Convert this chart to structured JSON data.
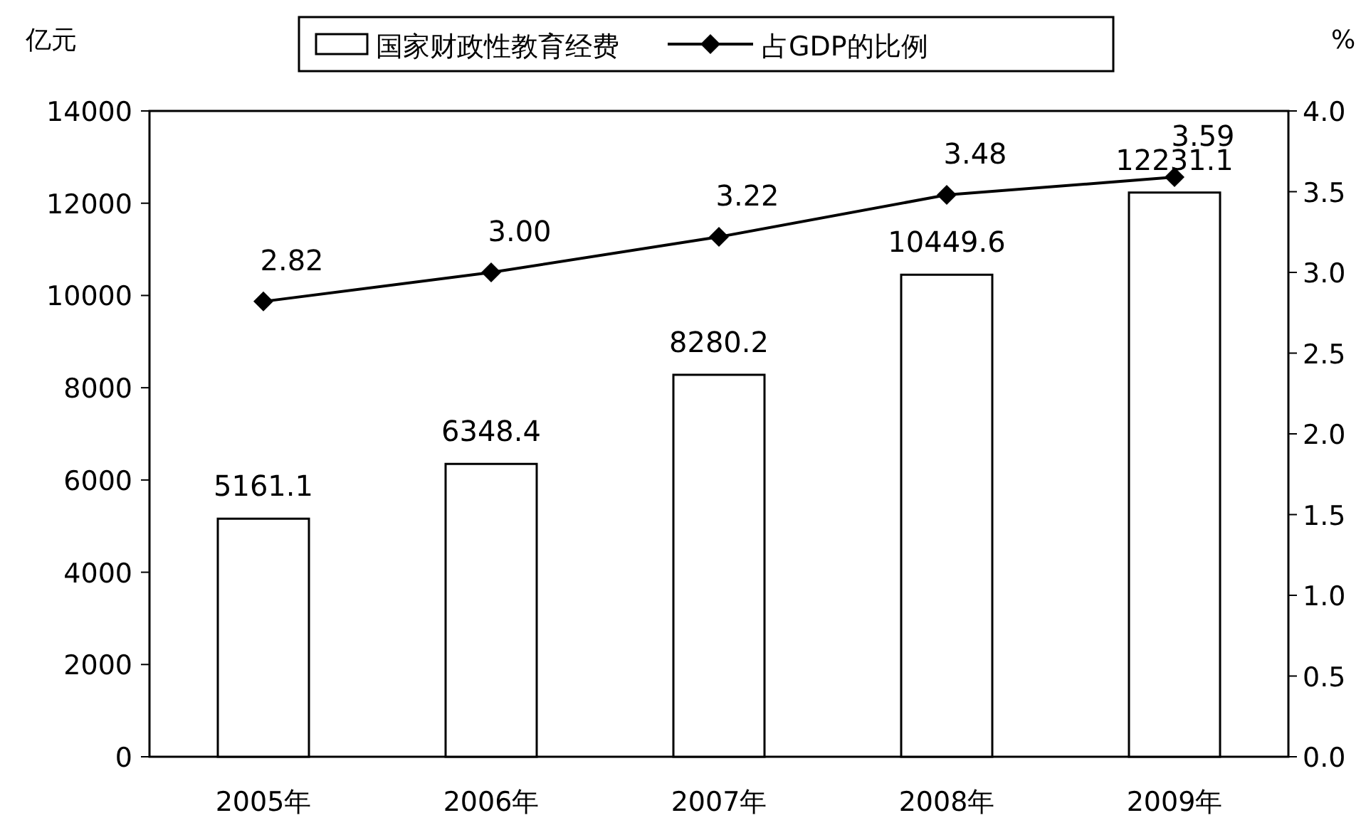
{
  "chart_data": {
    "type": "bar",
    "categories": [
      "2005年",
      "2006年",
      "2007年",
      "2008年",
      "2009年"
    ],
    "ylabel": "亿元",
    "y2label": "%",
    "ylim": [
      0,
      14000
    ],
    "yticks": [
      0,
      2000,
      4000,
      6000,
      8000,
      10000,
      12000,
      14000
    ],
    "y2lim": [
      0,
      4
    ],
    "y2ticks": [
      {
        "value": 0,
        "label": "0.0"
      },
      {
        "value": 0.5,
        "label": "0.5"
      },
      {
        "value": 1,
        "label": "1.0"
      },
      {
        "value": 1.5,
        "label": "1.5"
      },
      {
        "value": 2,
        "label": "2.0"
      },
      {
        "value": 2.5,
        "label": "2.5"
      },
      {
        "value": 3,
        "label": "3.0"
      },
      {
        "value": 3.5,
        "label": "3.5"
      },
      {
        "value": 4,
        "label": "4.0"
      }
    ],
    "legend": "top",
    "marker": "diamond",
    "grid": false,
    "series": [
      {
        "name": "国家财政性教育经费",
        "color": "#ffffff",
        "values": [
          5161.1,
          6348.4,
          8280.2,
          10449.6,
          12231.1
        ],
        "value_labels": [
          "5161.1",
          "6348.4",
          "8280.2",
          "10449.6",
          "12231.1"
        ]
      },
      {
        "name": "占GDP的比例",
        "type": "line",
        "axis": "y2",
        "color": "#000000",
        "values": [
          2.82,
          3.0,
          3.22,
          3.48,
          3.59
        ],
        "value_labels": [
          "2.82",
          "3.00",
          "3.22",
          "3.48",
          "3.59"
        ]
      }
    ]
  }
}
